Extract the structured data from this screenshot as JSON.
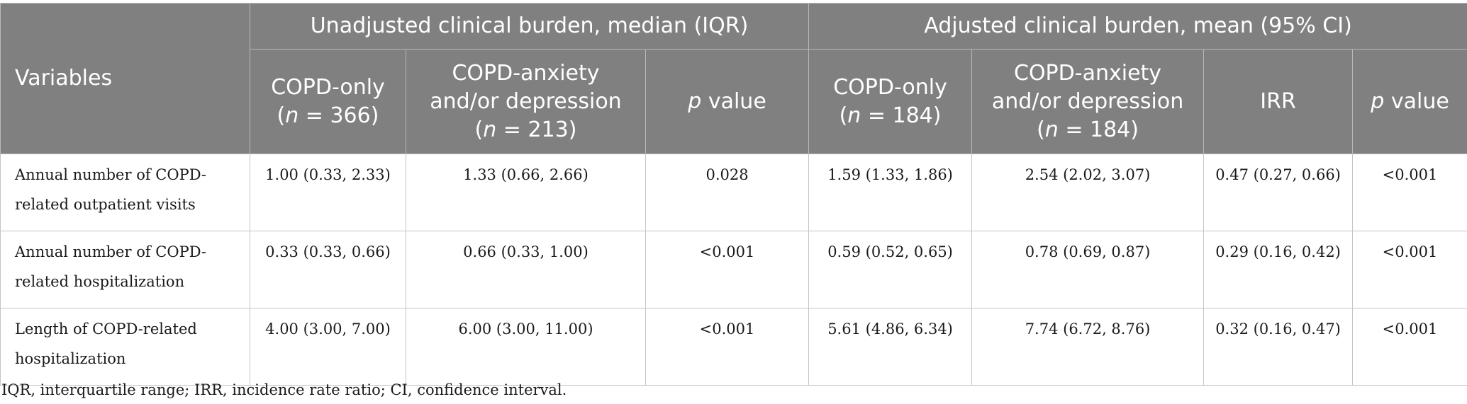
{
  "table": {
    "variables_header": "Variables",
    "group_unadjusted": "Unadjusted clinical burden, median (IQR)",
    "group_adjusted": "Adjusted clinical burden, mean (95% CI)",
    "columns": {
      "u_copd_only": {
        "line1": "COPD-only",
        "n_prefix": "(",
        "n_italic": "n",
        "n_rest": " = 366)"
      },
      "u_copd_anx": {
        "line1": "COPD-anxiety",
        "line2": "and/or depression",
        "n_prefix": "(",
        "n_italic": "n",
        "n_rest": " = 213)"
      },
      "u_p": {
        "italic": "p",
        "rest": " value"
      },
      "a_copd_only": {
        "line1": "COPD-only",
        "n_prefix": "(",
        "n_italic": "n",
        "n_rest": " = 184)"
      },
      "a_copd_anx": {
        "line1": "COPD-anxiety",
        "line2": "and/or depression",
        "n_prefix": "(",
        "n_italic": "n",
        "n_rest": " = 184)"
      },
      "a_irr": "IRR",
      "a_p": {
        "italic": "p",
        "rest": " value"
      }
    },
    "rows": [
      {
        "label_line1": "Annual number of COPD-",
        "label_line2": "related outpatient visits",
        "cells": [
          "1.00 (0.33, 2.33)",
          "1.33 (0.66, 2.66)",
          "0.028",
          "1.59 (1.33, 1.86)",
          "2.54 (2.02, 3.07)",
          "0.47 (0.27, 0.66)",
          "<0.001"
        ]
      },
      {
        "label_line1": "Annual number of COPD-",
        "label_line2": "related hospitalization",
        "cells": [
          "0.33 (0.33, 0.66)",
          "0.66 (0.33, 1.00)",
          "<0.001",
          "0.59 (0.52, 0.65)",
          "0.78 (0.69, 0.87)",
          "0.29 (0.16, 0.42)",
          "<0.001"
        ]
      },
      {
        "label_line1": "Length of COPD-related",
        "label_line2": "hospitalization",
        "cells": [
          "4.00 (3.00, 7.00)",
          "6.00 (3.00, 11.00)",
          "<0.001",
          "5.61 (4.86, 6.34)",
          "7.74 (6.72, 8.76)",
          "0.32 (0.16, 0.47)",
          "<0.001"
        ]
      }
    ]
  },
  "footnote": "IQR, interquartile range; IRR, incidence rate ratio; CI, confidence interval."
}
